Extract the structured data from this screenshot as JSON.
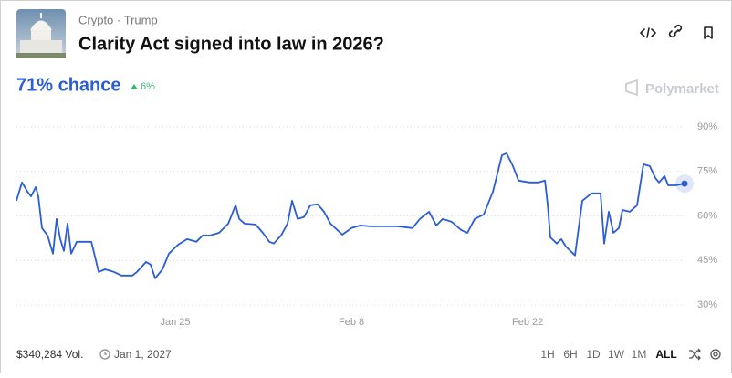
{
  "header": {
    "tags": "Crypto · Trump",
    "title": "Clarity Act signed into law in 2026?",
    "chance": "71% chance",
    "change": "6%",
    "brand": "Polymarket"
  },
  "chart_data": {
    "type": "line",
    "color": "#2a5dd6",
    "grid": true,
    "x": [
      -12.62,
      -12.18,
      -11.75,
      -11.46,
      -11.09,
      -10.88,
      -10.59,
      -10.15,
      -9.72,
      -9.43,
      -9.14,
      -8.85,
      -8.56,
      -8.27,
      -7.83,
      -7.4,
      -6.67,
      -6.09,
      -5.58,
      -4.86,
      -4.28,
      -3.41,
      -3.05,
      -2.32,
      -1.96,
      -1.6,
      -1.02,
      -0.51,
      0.22,
      0.94,
      1.67,
      2.18,
      2.76,
      3.48,
      4.21,
      4.79,
      5.08,
      5.51,
      6.38,
      6.96,
      7.47,
      7.83,
      8.41,
      8.92,
      9.28,
      9.72,
      10.22,
      10.73,
      11.31,
      11.82,
      12.33,
      13.27,
      14.0,
      14.72,
      15.45,
      16.53,
      17.62,
      18.85,
      19.43,
      20.16,
      20.74,
      21.25,
      21.97,
      22.7,
      23.21,
      23.79,
      24.51,
      25.24,
      25.96,
      26.32,
      26.83,
      27.27,
      28.14,
      28.86,
      29.37,
      29.59,
      29.8,
      30.31,
      30.67,
      31.03,
      31.76,
      32.34,
      33.06,
      33.79,
      34.08,
      34.44,
      34.81,
      35.24,
      35.53,
      36.11,
      36.69,
      37.2,
      37.7,
      38.14,
      38.43,
      38.87,
      39.16,
      39.74,
      40.46
    ],
    "values": [
      65.1,
      71.3,
      68.2,
      66.6,
      69.7,
      66.6,
      55.9,
      53.4,
      47.3,
      59.0,
      52.2,
      48.2,
      57.4,
      47.3,
      51.3,
      51.3,
      51.3,
      41.1,
      42.0,
      41.1,
      39.9,
      39.9,
      41.1,
      44.5,
      43.6,
      39.0,
      42.0,
      47.3,
      50.3,
      52.2,
      51.3,
      53.4,
      53.4,
      54.3,
      57.4,
      63.6,
      59.0,
      57.4,
      57.1,
      54.3,
      51.3,
      50.7,
      53.4,
      57.4,
      65.1,
      59.0,
      59.6,
      63.6,
      63.9,
      61.4,
      57.4,
      53.7,
      55.9,
      56.8,
      56.5,
      56.5,
      56.5,
      55.9,
      59.0,
      61.4,
      56.8,
      59.0,
      58.0,
      55.3,
      54.3,
      59.0,
      60.5,
      68.2,
      80.5,
      81.1,
      76.8,
      71.9,
      71.3,
      71.3,
      71.9,
      63.6,
      52.8,
      50.7,
      52.2,
      49.7,
      46.7,
      65.1,
      67.6,
      67.6,
      50.7,
      61.4,
      54.3,
      55.9,
      62.0,
      61.4,
      63.6,
      77.4,
      76.8,
      72.8,
      71.3,
      73.4,
      70.3,
      70.3,
      70.9
    ],
    "xlim": [
      -12.62,
      40.46
    ],
    "xticks": [
      {
        "value": 0,
        "label": "Jan 25"
      },
      {
        "value": 14,
        "label": "Feb 8"
      },
      {
        "value": 28,
        "label": "Feb 22"
      }
    ],
    "ylim": [
      30,
      90
    ],
    "yticks": [
      {
        "value": 90,
        "label": "90%"
      },
      {
        "value": 75,
        "label": "75%"
      },
      {
        "value": 60,
        "label": "60%"
      },
      {
        "value": 45,
        "label": "45%"
      },
      {
        "value": 30,
        "label": "30%"
      }
    ]
  },
  "footer": {
    "volume": "$340,284 Vol.",
    "end_date": "Jan 1, 2027",
    "ranges": [
      "1H",
      "6H",
      "1D",
      "1W",
      "1M",
      "ALL"
    ]
  }
}
